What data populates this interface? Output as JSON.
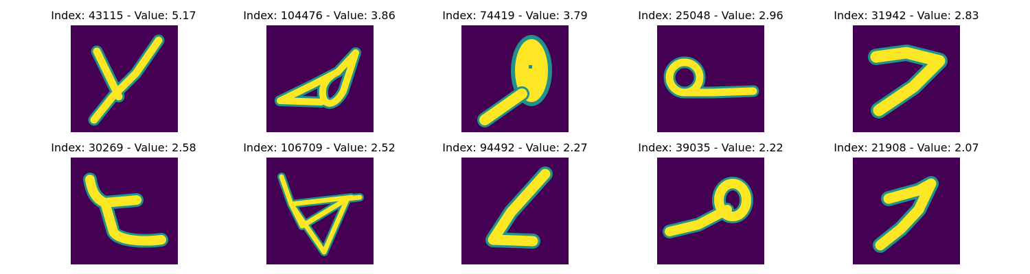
{
  "colors": {
    "background": "#440154",
    "edge": "#21918c",
    "fill": "#fde725"
  },
  "panels": [
    {
      "title": "Index: 43115 - Value: 5.17",
      "glyph": "y-shape-stroke"
    },
    {
      "title": "Index: 104476 - Value: 3.86",
      "glyph": "slanted-loop-stroke"
    },
    {
      "title": "Index: 74419 - Value: 3.79",
      "glyph": "tall-blob-stroke"
    },
    {
      "title": "Index: 25048 - Value: 2.96",
      "glyph": "loop-with-tail-stroke"
    },
    {
      "title": "Index: 31942 - Value: 2.83",
      "glyph": "seven-like-stroke"
    },
    {
      "title": "Index: 30269 - Value: 2.58",
      "glyph": "t-like-stroke"
    },
    {
      "title": "Index: 106709 - Value: 2.52",
      "glyph": "triangle-stroke"
    },
    {
      "title": "Index: 94492 - Value: 2.27",
      "glyph": "l-like-stroke"
    },
    {
      "title": "Index: 39035 - Value: 2.22",
      "glyph": "loop-low-stroke"
    },
    {
      "title": "Index: 21908 - Value: 2.07",
      "glyph": "nine-like-stroke"
    }
  ]
}
